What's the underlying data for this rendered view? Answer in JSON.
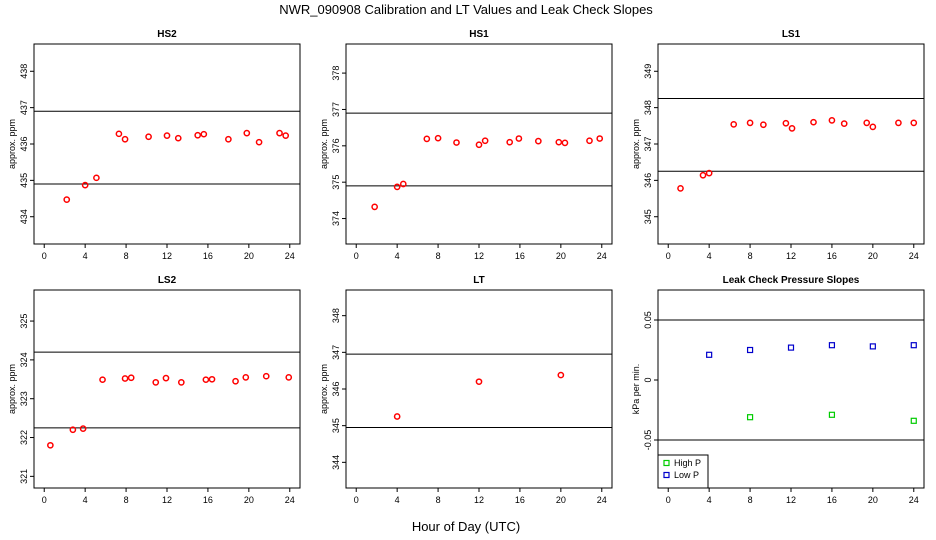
{
  "figure": {
    "title": "NWR_090908  Calibration and LT Values and Leak Check Slopes",
    "xlabel": "Hour of Day (UTC)"
  },
  "chart_data": [
    {
      "type": "scatter",
      "title": "HS2",
      "ylabel": "approx. ppm",
      "xlim": [
        -1,
        25
      ],
      "ylim": [
        433.25,
        438.75
      ],
      "xticks": [
        0,
        4,
        8,
        12,
        16,
        20,
        24
      ],
      "yticks": [
        434,
        435,
        436,
        437,
        438
      ],
      "hlines": [
        436.9,
        434.9
      ],
      "series": [
        {
          "color": "#ff0000",
          "marker": "circle",
          "x": [
            2.2,
            4.0,
            5.1,
            7.3,
            7.9,
            10.2,
            12.0,
            13.1,
            15.0,
            15.6,
            18.0,
            19.8,
            21.0,
            23.0,
            23.6
          ],
          "y": [
            434.47,
            434.87,
            435.07,
            436.28,
            436.13,
            436.2,
            436.23,
            436.16,
            436.24,
            436.27,
            436.13,
            436.3,
            436.05,
            436.3,
            436.23
          ]
        }
      ]
    },
    {
      "type": "scatter",
      "title": "HS1",
      "ylabel": "approx. ppm",
      "xlim": [
        -1,
        25
      ],
      "ylim": [
        373.3,
        378.8
      ],
      "xticks": [
        0,
        4,
        8,
        12,
        16,
        20,
        24
      ],
      "yticks": [
        374,
        375,
        376,
        377,
        378
      ],
      "hlines": [
        376.9,
        374.9
      ],
      "series": [
        {
          "color": "#ff0000",
          "marker": "circle",
          "x": [
            1.8,
            4.0,
            4.6,
            6.9,
            8.0,
            9.8,
            12.0,
            12.6,
            15.0,
            15.9,
            17.8,
            19.8,
            20.4,
            22.8,
            23.8
          ],
          "y": [
            374.32,
            374.87,
            374.95,
            376.19,
            376.21,
            376.09,
            376.03,
            376.14,
            376.1,
            376.2,
            376.13,
            376.1,
            376.08,
            376.14,
            376.2
          ]
        }
      ]
    },
    {
      "type": "scatter",
      "title": "LS1",
      "ylabel": "approx. ppm",
      "xlim": [
        -1,
        25
      ],
      "ylim": [
        344.25,
        349.75
      ],
      "xticks": [
        0,
        4,
        8,
        12,
        16,
        20,
        24
      ],
      "yticks": [
        345,
        346,
        347,
        348,
        349
      ],
      "hlines": [
        348.25,
        346.25
      ],
      "series": [
        {
          "color": "#ff0000",
          "marker": "circle",
          "x": [
            1.2,
            3.4,
            4.0,
            6.4,
            8.0,
            9.3,
            11.5,
            12.1,
            14.2,
            16.0,
            17.2,
            19.4,
            20.0,
            22.5,
            24.0
          ],
          "y": [
            345.78,
            346.14,
            346.2,
            347.54,
            347.58,
            347.53,
            347.57,
            347.43,
            347.6,
            347.65,
            347.56,
            347.58,
            347.47,
            347.58,
            347.58
          ]
        }
      ]
    },
    {
      "type": "scatter",
      "title": "LS2",
      "ylabel": "approx. ppm",
      "xlim": [
        -1,
        25
      ],
      "ylim": [
        320.7,
        325.8
      ],
      "xticks": [
        0,
        4,
        8,
        12,
        16,
        20,
        24
      ],
      "yticks": [
        321,
        322,
        323,
        324,
        325
      ],
      "hlines": [
        324.2,
        322.25
      ],
      "series": [
        {
          "color": "#ff0000",
          "marker": "circle",
          "x": [
            0.6,
            2.8,
            3.8,
            5.7,
            7.9,
            8.5,
            10.9,
            11.9,
            13.4,
            15.8,
            16.4,
            18.7,
            19.7,
            21.7,
            23.9
          ],
          "y": [
            321.8,
            322.2,
            322.23,
            323.49,
            323.52,
            323.54,
            323.42,
            323.53,
            323.42,
            323.49,
            323.5,
            323.45,
            323.55,
            323.58,
            323.55
          ]
        }
      ]
    },
    {
      "type": "scatter",
      "title": "LT",
      "ylabel": "approx. ppm",
      "xlim": [
        -1,
        25
      ],
      "ylim": [
        343.3,
        348.7
      ],
      "xticks": [
        0,
        4,
        8,
        12,
        16,
        20,
        24
      ],
      "yticks": [
        344,
        345,
        346,
        347,
        348
      ],
      "hlines": [
        346.95,
        344.95
      ],
      "series": [
        {
          "color": "#ff0000",
          "marker": "circle",
          "x": [
            4.0,
            12.0,
            20.0
          ],
          "y": [
            345.25,
            346.2,
            346.38
          ]
        }
      ]
    },
    {
      "type": "scatter",
      "title": "Leak Check Pressure Slopes",
      "ylabel": "kPa per min.",
      "xlim": [
        -1,
        25
      ],
      "ylim": [
        -0.09,
        0.075
      ],
      "xticks": [
        0,
        4,
        8,
        12,
        16,
        20,
        24
      ],
      "yticks": [
        -0.05,
        0.0,
        0.05
      ],
      "hlines": [
        0.05,
        -0.05
      ],
      "legend": {
        "position": "bottom-left"
      },
      "series": [
        {
          "name": "High P",
          "color": "#00cc00",
          "marker": "square",
          "x": [
            8,
            16,
            24
          ],
          "y": [
            -0.031,
            -0.029,
            -0.034
          ]
        },
        {
          "name": "Low P",
          "color": "#0000cc",
          "marker": "square",
          "x": [
            4,
            8,
            12,
            16,
            20,
            24
          ],
          "y": [
            0.021,
            0.025,
            0.027,
            0.029,
            0.028,
            0.029
          ]
        }
      ]
    }
  ]
}
